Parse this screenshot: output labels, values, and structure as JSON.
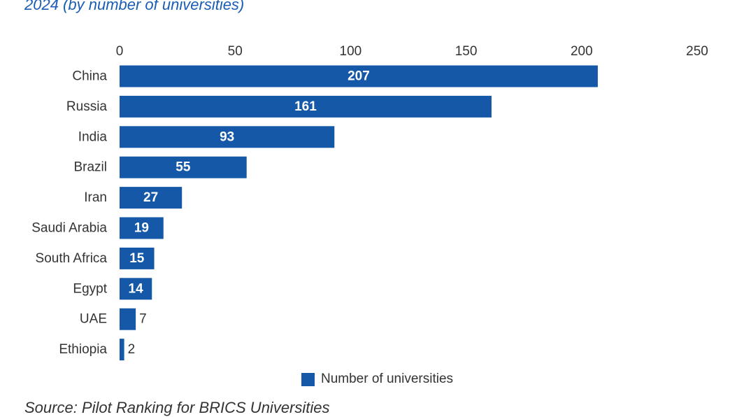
{
  "title": "2024 (by number of universities)",
  "source": "Source: Pilot Ranking for BRICS Universities",
  "colors": {
    "bar": "#1558a8",
    "title": "#1a5db4",
    "text": "#333333",
    "bar_label": "#ffffff",
    "outside_label": "#333333"
  },
  "legend": {
    "label": "Number of universities"
  },
  "chart_data": {
    "type": "bar",
    "orientation": "horizontal",
    "categories": [
      "China",
      "Russia",
      "India",
      "Brazil",
      "Iran",
      "Saudi Arabia",
      "South Africa",
      "Egypt",
      "UAE",
      "Ethiopia"
    ],
    "series": [
      {
        "name": "Number of universities",
        "values": [
          207,
          161,
          93,
          55,
          27,
          19,
          15,
          14,
          7,
          2
        ]
      }
    ],
    "data_labels": [
      "207",
      "161",
      "93",
      "55",
      "27",
      "19",
      "15",
      "14",
      "7",
      "2"
    ],
    "x_ticks": [
      "0",
      "50",
      "100",
      "150",
      "200",
      "250"
    ],
    "xlim": [
      0,
      250
    ],
    "axis_position": "top",
    "grid": false,
    "legend_position": "bottom"
  }
}
